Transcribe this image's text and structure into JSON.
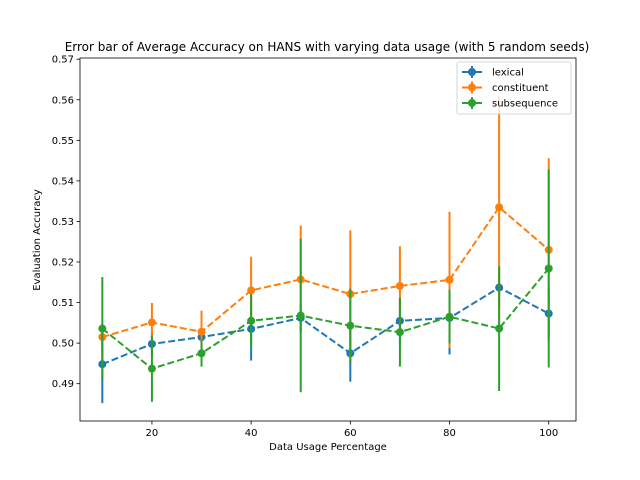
{
  "chart_data": {
    "type": "line",
    "title": "Error bar of Average Accuracy on HANS with varying data usage (with 5 random seeds)",
    "xlabel": "Data Usage Percentage",
    "ylabel": "Evaluation Accuracy",
    "xlim": [
      5.5,
      105.5
    ],
    "ylim": [
      0.4808,
      0.5703
    ],
    "xticks": [
      20,
      40,
      60,
      80,
      100
    ],
    "yticks": [
      0.49,
      0.5,
      0.51,
      0.52,
      0.53,
      0.54,
      0.55,
      0.56,
      0.57
    ],
    "xtick_labels": [
      "20",
      "40",
      "60",
      "80",
      "100"
    ],
    "ytick_labels": [
      "0.49",
      "0.50",
      "0.51",
      "0.52",
      "0.53",
      "0.54",
      "0.55",
      "0.56",
      "0.57"
    ],
    "grid": false,
    "legend_position": "top-right",
    "x": [
      10,
      20,
      30,
      40,
      50,
      60,
      70,
      80,
      90,
      100
    ],
    "series": [
      {
        "name": "lexical",
        "color": "#1f77b4",
        "values": [
          0.4948,
          0.4998,
          0.5015,
          0.5035,
          0.5062,
          0.4975,
          0.5055,
          0.5062,
          0.5137,
          0.5073
        ],
        "errors": [
          0.0096,
          0.003,
          0.0025,
          0.0078,
          0.0034,
          0.007,
          0.0055,
          0.009,
          0.005,
          0.006
        ]
      },
      {
        "name": "constituent",
        "color": "#ff7f0e",
        "values": [
          0.5015,
          0.5051,
          0.5028,
          0.513,
          0.5157,
          0.5121,
          0.5141,
          0.5156,
          0.5335,
          0.523
        ],
        "errors": [
          0.003,
          0.0048,
          0.0052,
          0.0083,
          0.0133,
          0.0157,
          0.0098,
          0.0168,
          0.0275,
          0.0226
        ]
      },
      {
        "name": "subsequence",
        "color": "#2ca02c",
        "values": [
          0.5036,
          0.4937,
          0.4975,
          0.5055,
          0.5068,
          0.5043,
          0.5027,
          0.5065,
          0.5036,
          0.5184
        ],
        "errors": [
          0.0127,
          0.0082,
          0.0033,
          0.0066,
          0.0189,
          0.0092,
          0.0085,
          0.0066,
          0.0154,
          0.0244
        ]
      }
    ]
  }
}
